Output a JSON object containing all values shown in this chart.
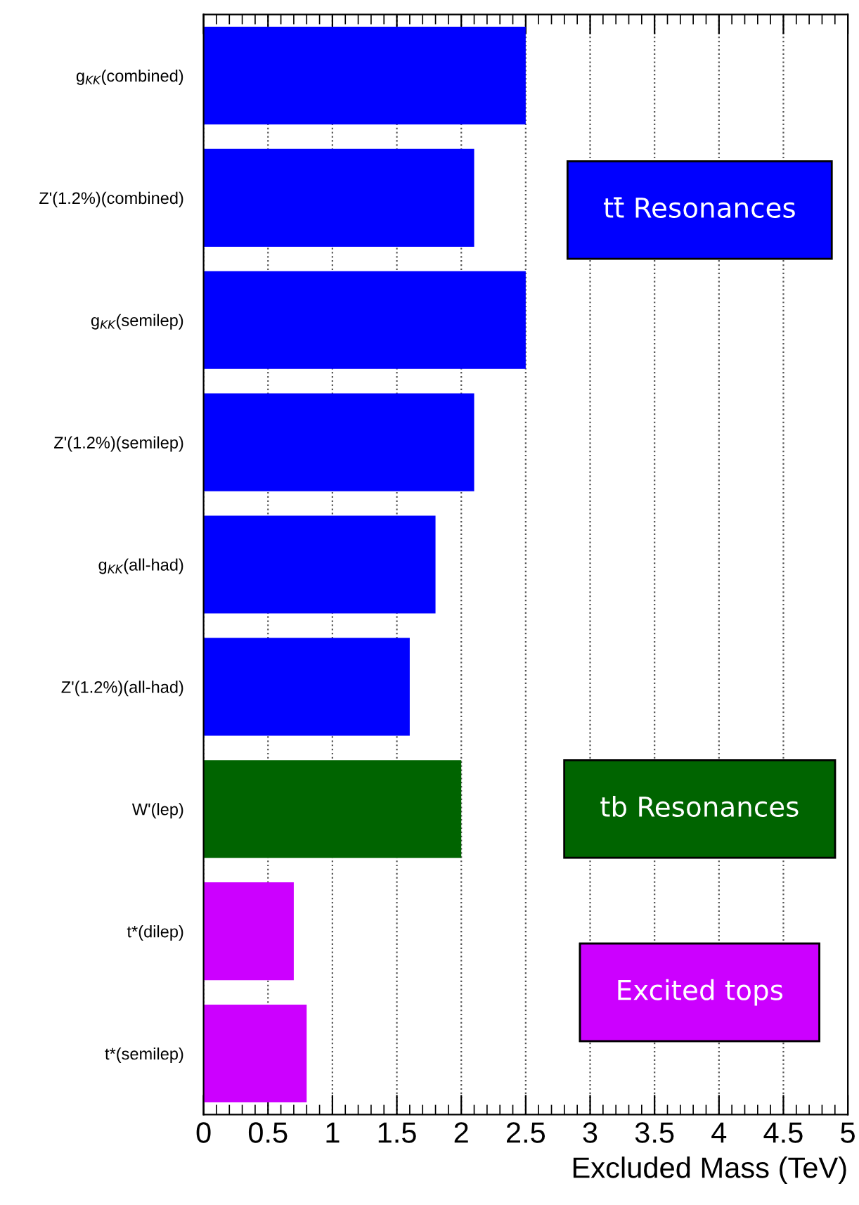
{
  "chart_data": {
    "type": "bar",
    "orientation": "horizontal",
    "xlabel": "Excluded Mass (TeV)",
    "categories": [
      "g$_{KK}$(combined)",
      "Z'(1.2%)(combined)",
      "g$_{KK}$(semilep)",
      "Z'(1.2%)(semilep)",
      "g$_{KK}$(all-had)",
      "Z'(1.2%)(all-had)",
      "W'(lep)",
      "t*(dilep)",
      "t*(semilep)"
    ],
    "series": [
      {
        "name": "tt̄ Resonances",
        "color": "#0000ff",
        "values": [
          2.5,
          2.1,
          2.5,
          2.1,
          1.8,
          1.6,
          null,
          null,
          null
        ]
      },
      {
        "name": "tb Resonances",
        "color": "#006400",
        "values": [
          null,
          null,
          null,
          null,
          null,
          null,
          2.0,
          null,
          null
        ]
      },
      {
        "name": "Excited tops",
        "color": "#cc00ff",
        "values": [
          null,
          null,
          null,
          null,
          null,
          null,
          null,
          0.7,
          0.8
        ]
      }
    ],
    "xlim": [
      0,
      5
    ],
    "xticks": [
      0,
      0.5,
      1,
      1.5,
      2,
      2.5,
      3,
      3.5,
      4,
      4.5,
      5
    ],
    "grid": "x",
    "legend": "right"
  }
}
